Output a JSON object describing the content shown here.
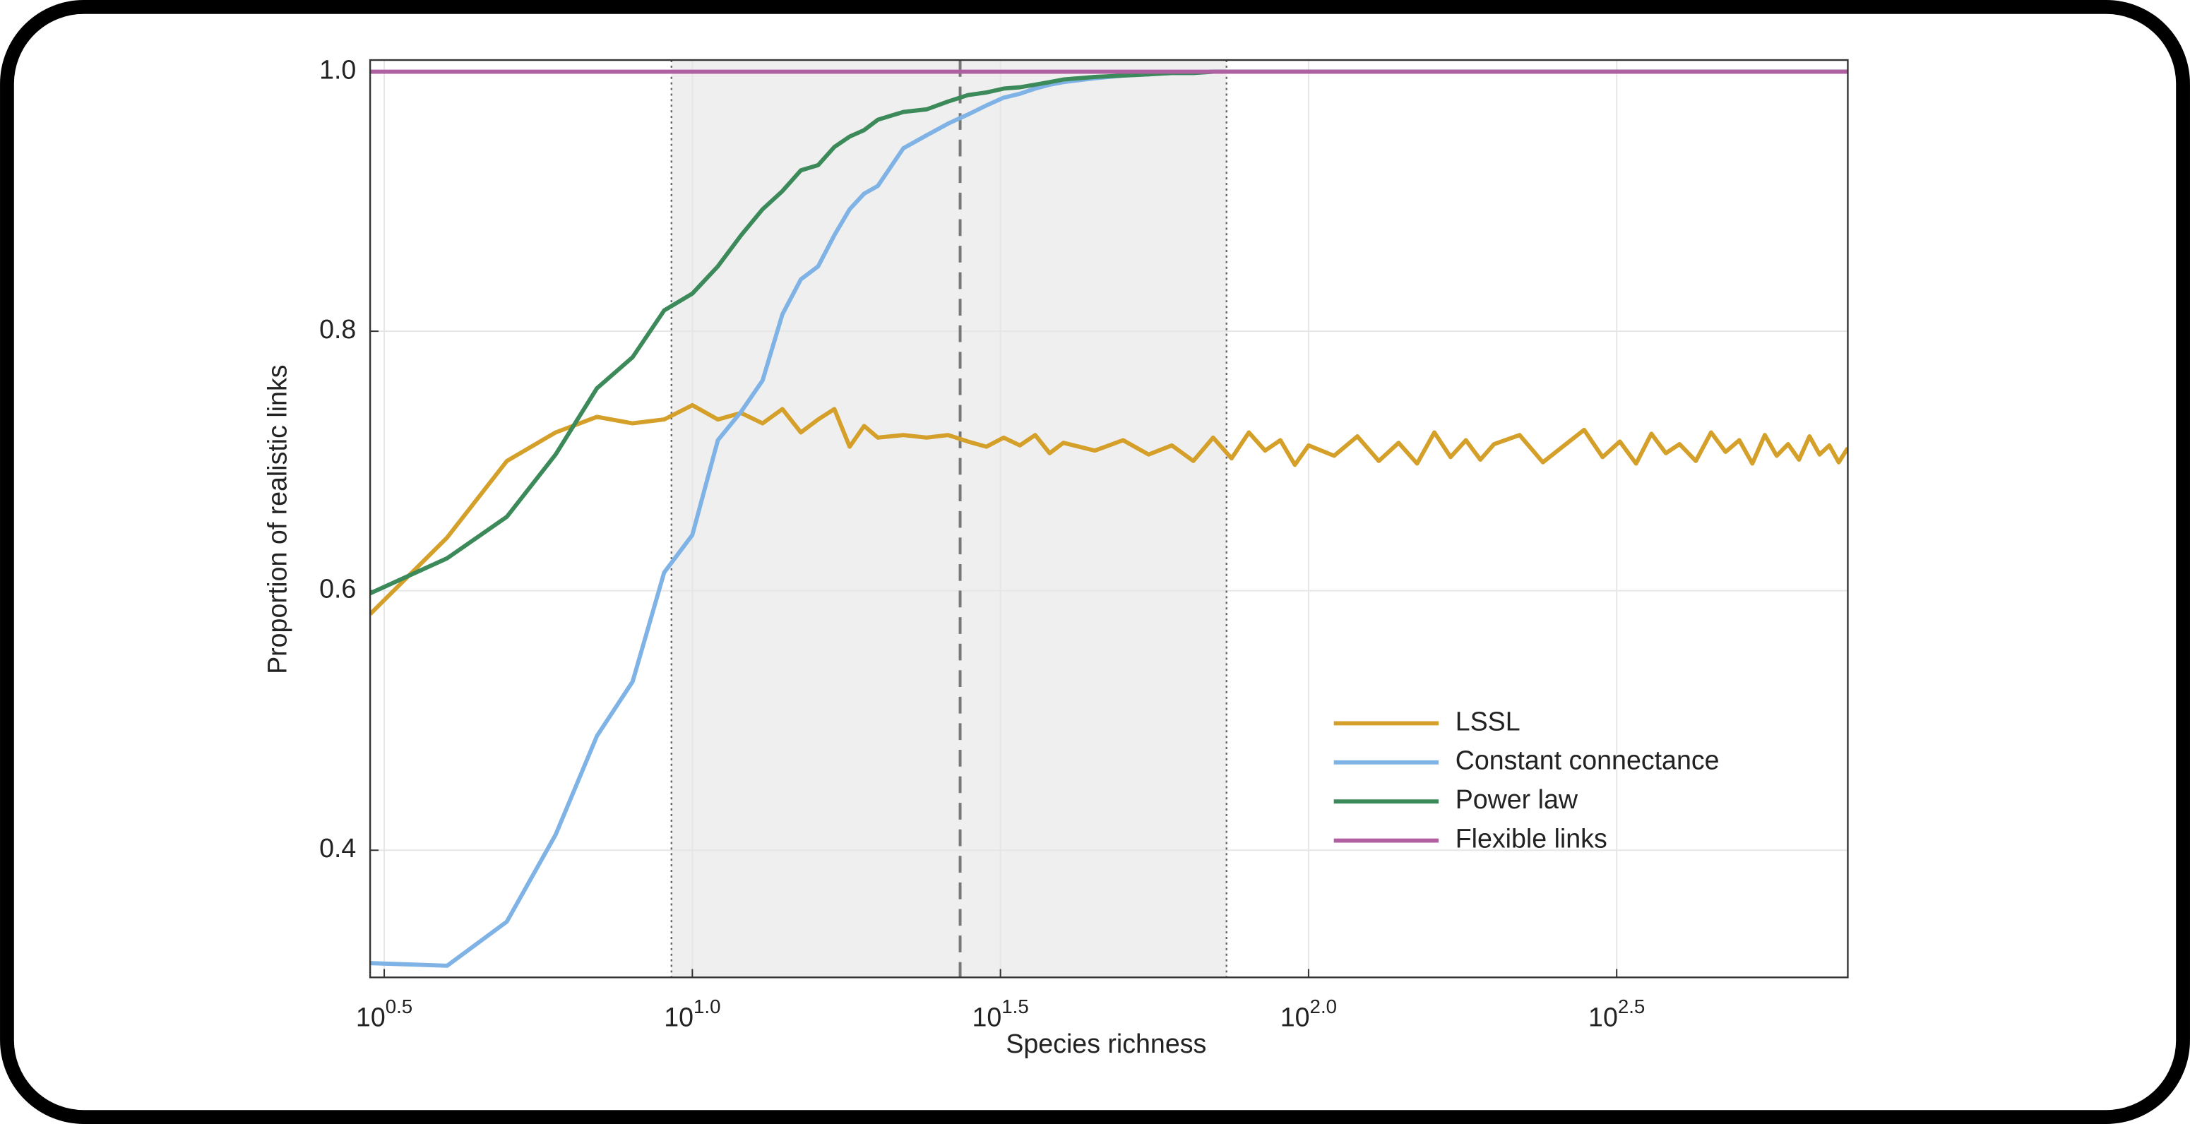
{
  "chart_data": {
    "type": "line",
    "x_label": "Species richness",
    "y_label": "Proportion of realistic links",
    "xscale": "log",
    "xlim": [
      3,
      750
    ],
    "ylim": [
      0.302,
      1.009
    ],
    "xticks": [
      {
        "value": 3.1623,
        "label": "10",
        "exponent": "0.5"
      },
      {
        "value": 10,
        "label": "10",
        "exponent": "1.0"
      },
      {
        "value": 31.623,
        "label": "10",
        "exponent": "1.5"
      },
      {
        "value": 100,
        "label": "10",
        "exponent": "2.0"
      },
      {
        "value": 316.23,
        "label": "10",
        "exponent": "2.5"
      }
    ],
    "yticks": [
      0.4,
      0.6,
      0.8,
      {
        "value": 1,
        "label": "1.0"
      }
    ],
    "grid": true,
    "legend": "lower right",
    "shaded_range": [
      9.25,
      73.6
    ],
    "reference_line": 27.2,
    "x": [
      3,
      4,
      5,
      6,
      7,
      8,
      9,
      10,
      11,
      12,
      13,
      14,
      15,
      16,
      17,
      18,
      19,
      20,
      22,
      24,
      26,
      28,
      30,
      32,
      34,
      36,
      38,
      40,
      45,
      50,
      55,
      60,
      65,
      70,
      75,
      80,
      85,
      90,
      95,
      100,
      110,
      120,
      130,
      140,
      150,
      160,
      170,
      180,
      190,
      200,
      220,
      240,
      260,
      280,
      300,
      320,
      340,
      360,
      380,
      400,
      425,
      450,
      475,
      500,
      525,
      550,
      575,
      600,
      625,
      650,
      675,
      700,
      725,
      750
    ],
    "series": [
      {
        "name": "LSSL",
        "color": "#d4a02a",
        "values": [
          0.582,
          0.641,
          0.7,
          0.722,
          0.734,
          0.729,
          0.732,
          0.743,
          0.732,
          0.737,
          0.729,
          0.74,
          0.722,
          0.732,
          0.74,
          0.711,
          0.727,
          0.718,
          0.72,
          0.718,
          0.72,
          0.715,
          0.711,
          0.718,
          0.712,
          0.72,
          0.706,
          0.714,
          0.708,
          0.716,
          0.705,
          0.712,
          0.7,
          0.718,
          0.702,
          0.722,
          0.708,
          0.716,
          0.697,
          0.712,
          0.704,
          0.719,
          0.7,
          0.714,
          0.698,
          0.722,
          0.703,
          0.716,
          0.701,
          0.713,
          0.72,
          0.699,
          0.712,
          0.724,
          0.703,
          0.715,
          0.698,
          0.721,
          0.706,
          0.713,
          0.7,
          0.722,
          0.707,
          0.716,
          0.698,
          0.72,
          0.704,
          0.713,
          0.701,
          0.719,
          0.705,
          0.712,
          0.699,
          0.71
        ]
      },
      {
        "name": "Constant connectance",
        "color": "#7fb3e6",
        "values": [
          0.313,
          0.311,
          0.345,
          0.412,
          0.488,
          0.53,
          0.614,
          0.643,
          0.716,
          0.738,
          0.762,
          0.813,
          0.84,
          0.85,
          0.874,
          0.894,
          0.906,
          0.912,
          0.941,
          0.951,
          0.96,
          0.967,
          0.974,
          0.98,
          0.983,
          0.987,
          0.99,
          0.992,
          0.995,
          0.997,
          0.998,
          0.999,
          0.999,
          1,
          1,
          1,
          1,
          1,
          1,
          1,
          1,
          1,
          1,
          1,
          1,
          1,
          1,
          1,
          1,
          1,
          1,
          1,
          1,
          1,
          1,
          1,
          1,
          1,
          1,
          1,
          1,
          1,
          1,
          1,
          1,
          1,
          1,
          1,
          1,
          1,
          1,
          1,
          1,
          1
        ]
      },
      {
        "name": "Power law",
        "color": "#3c8a5a",
        "values": [
          0.598,
          0.625,
          0.657,
          0.705,
          0.756,
          0.78,
          0.816,
          0.829,
          0.85,
          0.874,
          0.894,
          0.908,
          0.924,
          0.928,
          0.942,
          0.95,
          0.955,
          0.963,
          0.969,
          0.971,
          0.977,
          0.982,
          0.984,
          0.987,
          0.988,
          0.99,
          0.992,
          0.994,
          0.996,
          0.997,
          0.998,
          0.999,
          0.999,
          1,
          1,
          1,
          1,
          1,
          1,
          1,
          1,
          1,
          1,
          1,
          1,
          1,
          1,
          1,
          1,
          1,
          1,
          1,
          1,
          1,
          1,
          1,
          1,
          1,
          1,
          1,
          1,
          1,
          1,
          1,
          1,
          1,
          1,
          1,
          1,
          1,
          1,
          1,
          1,
          1
        ]
      },
      {
        "name": "Flexible links",
        "color": "#b05fa0",
        "values": [
          1,
          1,
          1,
          1,
          1,
          1,
          1,
          1,
          1,
          1,
          1,
          1,
          1,
          1,
          1,
          1,
          1,
          1,
          1,
          1,
          1,
          1,
          1,
          1,
          1,
          1,
          1,
          1,
          1,
          1,
          1,
          1,
          1,
          1,
          1,
          1,
          1,
          1,
          1,
          1,
          1,
          1,
          1,
          1,
          1,
          1,
          1,
          1,
          1,
          1,
          1,
          1,
          1,
          1,
          1,
          1,
          1,
          1,
          1,
          1,
          1,
          1,
          1,
          1,
          1,
          1,
          1,
          1,
          1,
          1,
          1,
          1,
          1,
          1
        ]
      }
    ]
  }
}
